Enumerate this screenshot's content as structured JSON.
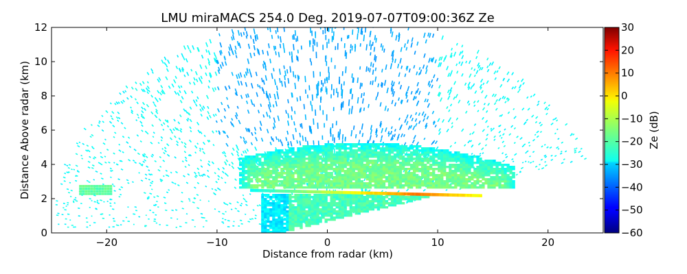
{
  "chart_data": {
    "type": "heatmap",
    "title": "LMU miraMACS 254.0 Deg. 2019-07-07T09:00:36Z  Ze",
    "xlabel": "Distance from radar (km)",
    "ylabel": "Distance Above radar  (km)",
    "xlim": [
      -25,
      25
    ],
    "ylim": [
      0,
      12
    ],
    "xticks": [
      -20,
      -10,
      0,
      10,
      20
    ],
    "yticks": [
      0,
      2,
      4,
      6,
      8,
      10,
      12
    ],
    "colorbar": {
      "label": "Ze (dB)",
      "range": [
        -60,
        30
      ],
      "ticks": [
        -60,
        -50,
        -40,
        -30,
        -20,
        -10,
        0,
        10,
        20,
        30
      ],
      "colormap": "jet"
    },
    "grid": false,
    "features": [
      {
        "kind": "noise-speckle",
        "x_range": [
          -24.5,
          23.5
        ],
        "y_range": [
          0.3,
          12
        ],
        "typical_ze_db": -28
      },
      {
        "kind": "cloud-layer",
        "x_range": [
          -8,
          17
        ],
        "y_range": [
          2.6,
          5.5
        ],
        "typical_ze_db": -16
      },
      {
        "kind": "melting-layer",
        "x_range": [
          -7,
          14
        ],
        "y_center": 2.35,
        "peak_ze_db": 8,
        "peak_x": 8
      },
      {
        "kind": "precipitation",
        "x_range": [
          -6,
          12
        ],
        "y_range": [
          0,
          2.2
        ],
        "typical_ze_db": -20
      }
    ]
  }
}
